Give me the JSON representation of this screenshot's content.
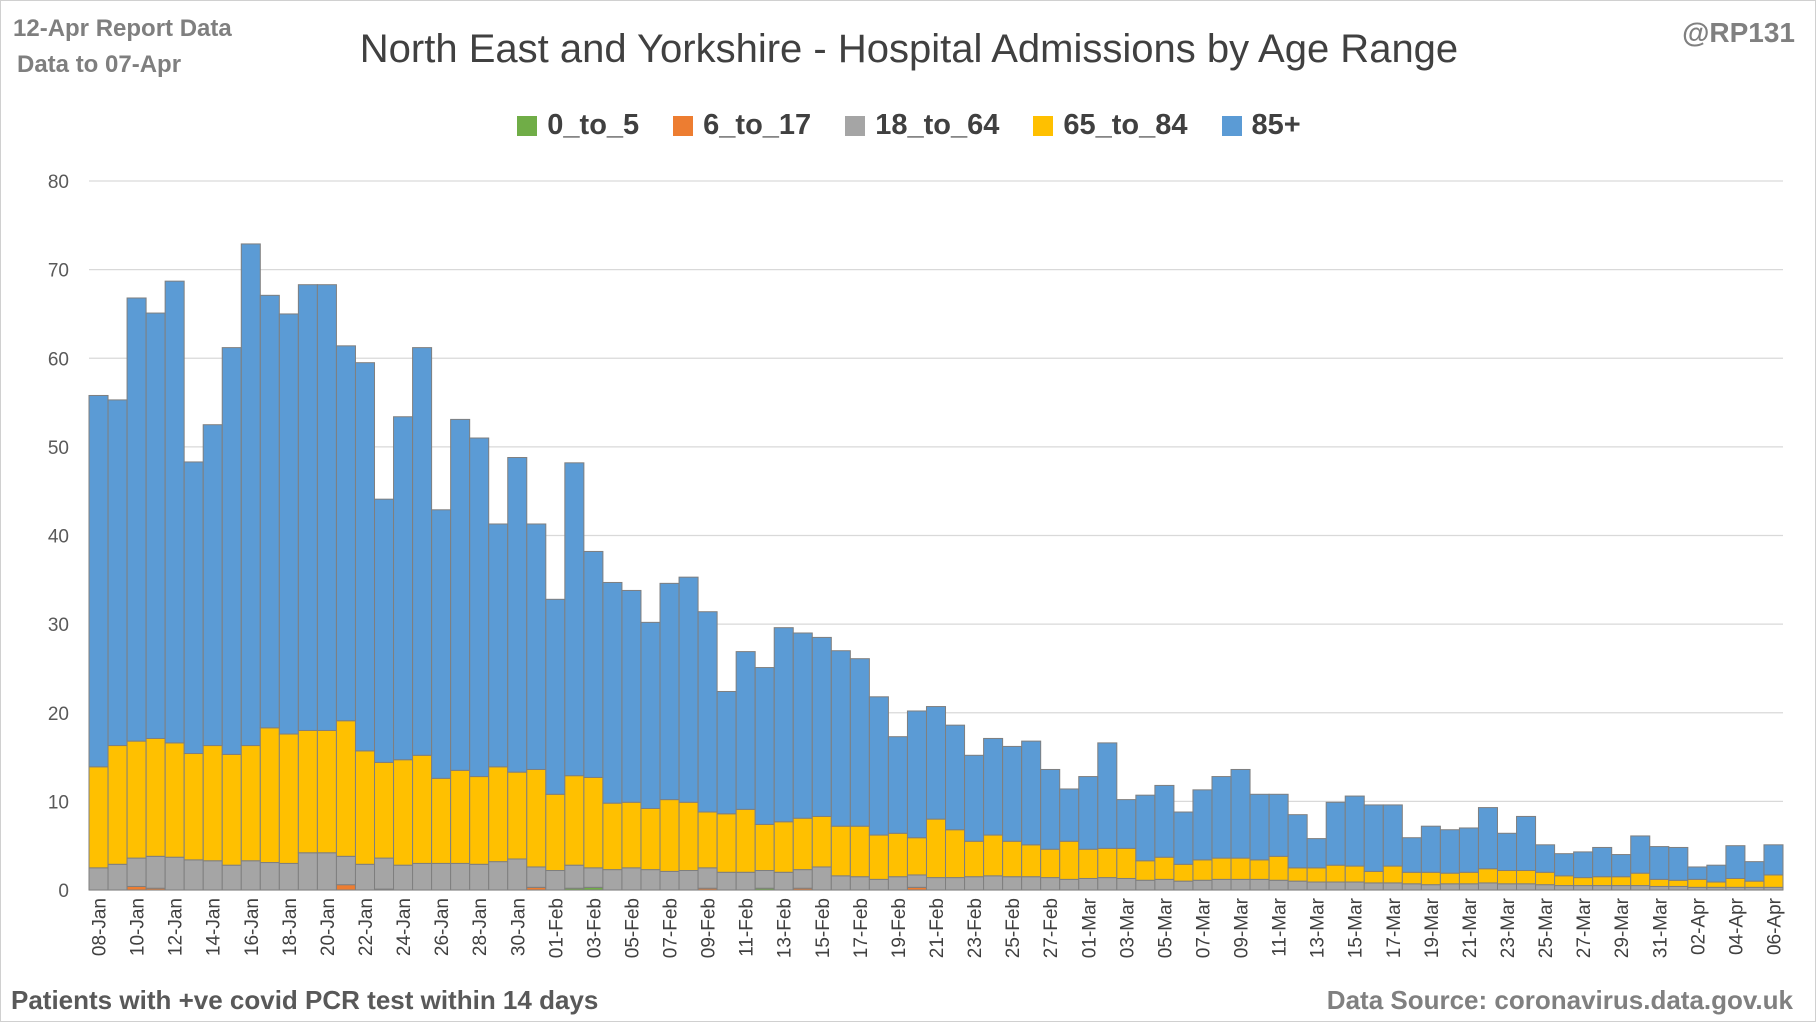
{
  "header": {
    "report_line1": "12-Apr Report Data",
    "report_line2": "Data to 07-Apr",
    "handle": "@RP131",
    "title": "North East and Yorkshire - Hospital Admissions by Age Range"
  },
  "footer": {
    "note": "Patients with  +ve covid PCR test within 14 days",
    "source": "Data Source: coronavirus.data.gov.uk"
  },
  "colors": {
    "0_to_5": "#70ad47",
    "6_to_17": "#ed7d31",
    "18_to_64": "#a5a5a5",
    "65_to_84": "#ffc000",
    "85+": "#5b9bd5"
  },
  "chart_data": {
    "type": "bar",
    "stacked": true,
    "ylim": [
      0,
      80
    ],
    "yticks": [
      0,
      10,
      20,
      30,
      40,
      50,
      60,
      70,
      80
    ],
    "grid": true,
    "legend_position": "top",
    "xtick_labels": [
      "08-Jan",
      "10-Jan",
      "12-Jan",
      "14-Jan",
      "16-Jan",
      "18-Jan",
      "20-Jan",
      "22-Jan",
      "24-Jan",
      "26-Jan",
      "28-Jan",
      "30-Jan",
      "01-Feb",
      "03-Feb",
      "05-Feb",
      "07-Feb",
      "09-Feb",
      "11-Feb",
      "13-Feb",
      "15-Feb",
      "17-Feb",
      "19-Feb",
      "21-Feb",
      "23-Feb",
      "25-Feb",
      "27-Feb",
      "01-Mar",
      "03-Mar",
      "05-Mar",
      "07-Mar",
      "09-Mar",
      "11-Mar",
      "13-Mar",
      "15-Mar",
      "17-Mar",
      "19-Mar",
      "21-Mar",
      "23-Mar",
      "25-Mar",
      "27-Mar",
      "29-Mar",
      "31-Mar",
      "02-Apr",
      "04-Apr",
      "06-Apr"
    ],
    "series_names": [
      "0_to_5",
      "6_to_17",
      "18_to_64",
      "65_to_84",
      "85+"
    ],
    "totals": [
      55.8,
      55.3,
      66.8,
      65.1,
      68.7,
      48.3,
      52.5,
      61.2,
      72.9,
      67.1,
      65.0,
      68.3,
      68.3,
      61.4,
      59.5,
      44.1,
      53.4,
      61.2,
      42.9,
      53.1,
      51.1,
      41.3,
      48.8,
      41.3,
      32.8,
      48.2,
      38.2,
      34.7,
      33.8,
      30.2,
      34.6,
      35.3,
      31.4,
      22.4,
      26.9,
      25.1,
      29.6,
      29.0,
      28.5,
      27.0,
      26.1,
      21.8,
      17.3,
      20.2,
      20.7,
      18.6,
      15.2,
      17.1,
      16.2,
      16.8,
      13.6,
      11.4,
      12.8,
      16.6,
      10.2,
      10.7,
      11.8,
      8.8,
      11.3,
      12.8,
      13.6,
      10.8,
      10.8,
      8.5,
      5.8,
      10.1,
      10.6,
      9.6,
      9.6,
      5.9,
      7.2,
      6.8,
      7.0,
      9.3,
      6.4,
      8.3,
      5.1,
      4.1,
      4.3,
      4.8,
      4.0,
      6.1,
      4.9,
      4.8,
      2.6,
      2.8,
      5.0,
      3.2,
      5.1
    ],
    "series": [
      {
        "name": "0_to_5",
        "values": [
          0,
          0,
          0,
          0,
          0,
          0,
          0,
          0,
          0,
          0,
          0,
          0,
          0,
          0,
          0,
          0.1,
          0,
          0,
          0,
          0,
          0,
          0,
          0,
          0,
          0,
          0.2,
          0.3,
          0,
          0,
          0,
          0,
          0,
          0,
          0,
          0,
          0.2,
          0,
          0,
          0,
          0,
          0,
          0,
          0,
          0,
          0,
          0,
          0,
          0,
          0,
          0,
          0,
          0,
          0,
          0,
          0,
          0,
          0,
          0,
          0,
          0,
          0,
          0,
          0,
          0,
          0,
          0,
          0,
          0,
          0,
          0,
          0,
          0,
          0,
          0,
          0,
          0,
          0,
          0,
          0,
          0,
          0,
          0,
          0,
          0,
          0,
          0,
          0,
          0,
          0
        ]
      },
      {
        "name": "6_to_17",
        "values": [
          0,
          0,
          0.4,
          0.2,
          0,
          0,
          0,
          0,
          0,
          0,
          0,
          0,
          0,
          0.6,
          0,
          0,
          0,
          0,
          0,
          0,
          0,
          0,
          0,
          0.3,
          0,
          0,
          0,
          0,
          0,
          0,
          0,
          0,
          0.2,
          0,
          0,
          0,
          0,
          0.2,
          0,
          0,
          0,
          0,
          0,
          0.3,
          0,
          0,
          0,
          0,
          0,
          0,
          0,
          0,
          0,
          0,
          0,
          0,
          0,
          0,
          0,
          0,
          0,
          0,
          0,
          0,
          0,
          0,
          0,
          0,
          0,
          0,
          0,
          0,
          0,
          0,
          0,
          0,
          0,
          0,
          0,
          0,
          0,
          0,
          0,
          0,
          0,
          0,
          0,
          0,
          0
        ]
      },
      {
        "name": "18_to_64",
        "values": [
          2.5,
          2.9,
          3.2,
          3.6,
          3.7,
          3.4,
          3.3,
          2.8,
          3.3,
          3.1,
          3.0,
          4.2,
          4.2,
          3.2,
          2.9,
          3.5,
          2.8,
          3.0,
          3.0,
          3.0,
          2.9,
          3.2,
          3.5,
          2.3,
          2.2,
          2.6,
          2.2,
          2.3,
          2.5,
          2.3,
          2.1,
          2.2,
          2.3,
          2.0,
          2.0,
          2.0,
          2.0,
          2.1,
          2.6,
          1.6,
          1.5,
          1.2,
          1.5,
          1.4,
          1.4,
          1.4,
          1.5,
          1.6,
          1.5,
          1.5,
          1.4,
          1.2,
          1.3,
          1.4,
          1.3,
          1.1,
          1.2,
          1.0,
          1.1,
          1.2,
          1.2,
          1.2,
          1.1,
          1.0,
          0.9,
          0.9,
          0.9,
          0.8,
          0.8,
          0.7,
          0.6,
          0.7,
          0.7,
          0.8,
          0.7,
          0.7,
          0.6,
          0.5,
          0.5,
          0.5,
          0.5,
          0.5,
          0.4,
          0.4,
          0.3,
          0.3,
          0.3,
          0.3,
          0.3
        ]
      },
      {
        "name": "65_to_84",
        "values": [
          11.4,
          13.4,
          13.2,
          13.3,
          12.9,
          12.0,
          13.0,
          12.5,
          13.0,
          15.2,
          14.6,
          13.8,
          13.8,
          15.3,
          12.8,
          10.8,
          11.9,
          12.2,
          9.6,
          10.5,
          9.9,
          10.7,
          9.8,
          11.0,
          8.6,
          10.1,
          10.2,
          7.5,
          7.4,
          6.9,
          8.1,
          7.7,
          6.3,
          6.6,
          7.1,
          5.2,
          5.7,
          5.8,
          5.7,
          5.6,
          5.7,
          5.0,
          4.9,
          4.2,
          6.6,
          5.4,
          4.0,
          4.6,
          4.0,
          3.6,
          3.2,
          4.3,
          3.3,
          3.3,
          3.4,
          2.2,
          2.5,
          1.9,
          2.3,
          2.4,
          2.4,
          2.2,
          2.7,
          1.5,
          1.6,
          1.9,
          1.8,
          1.3,
          1.9,
          1.3,
          1.4,
          1.2,
          1.3,
          1.6,
          1.5,
          1.5,
          1.4,
          1.1,
          0.9,
          1.0,
          1.0,
          1.4,
          0.8,
          0.7,
          0.9,
          0.6,
          1.0,
          0.7,
          1.4
        ]
      },
      {
        "name": "85+",
        "values": [
          41.9,
          39.0,
          50.0,
          48.0,
          52.1,
          32.9,
          36.2,
          45.9,
          56.6,
          48.8,
          47.4,
          50.3,
          50.3,
          42.3,
          43.8,
          29.7,
          38.7,
          46.0,
          30.3,
          39.6,
          38.2,
          27.4,
          35.5,
          27.7,
          22.0,
          35.3,
          25.5,
          24.9,
          23.9,
          21.0,
          24.4,
          25.4,
          22.6,
          13.8,
          17.8,
          17.7,
          21.9,
          20.9,
          20.2,
          19.8,
          18.9,
          15.6,
          10.9,
          14.3,
          12.7,
          11.8,
          9.7,
          10.9,
          10.7,
          11.7,
          9.0,
          5.9,
          8.2,
          11.9,
          5.5,
          7.4,
          8.1,
          5.9,
          7.9,
          9.2,
          10.0,
          7.4,
          7.0,
          6.0,
          3.3,
          7.1,
          7.9,
          7.5,
          6.9,
          3.9,
          5.2,
          4.9,
          5.0,
          6.9,
          4.2,
          6.1,
          3.1,
          2.5,
          2.9,
          3.3,
          2.5,
          4.2,
          3.7,
          3.7,
          1.4,
          1.9,
          3.7,
          2.2,
          3.4
        ]
      }
    ]
  }
}
